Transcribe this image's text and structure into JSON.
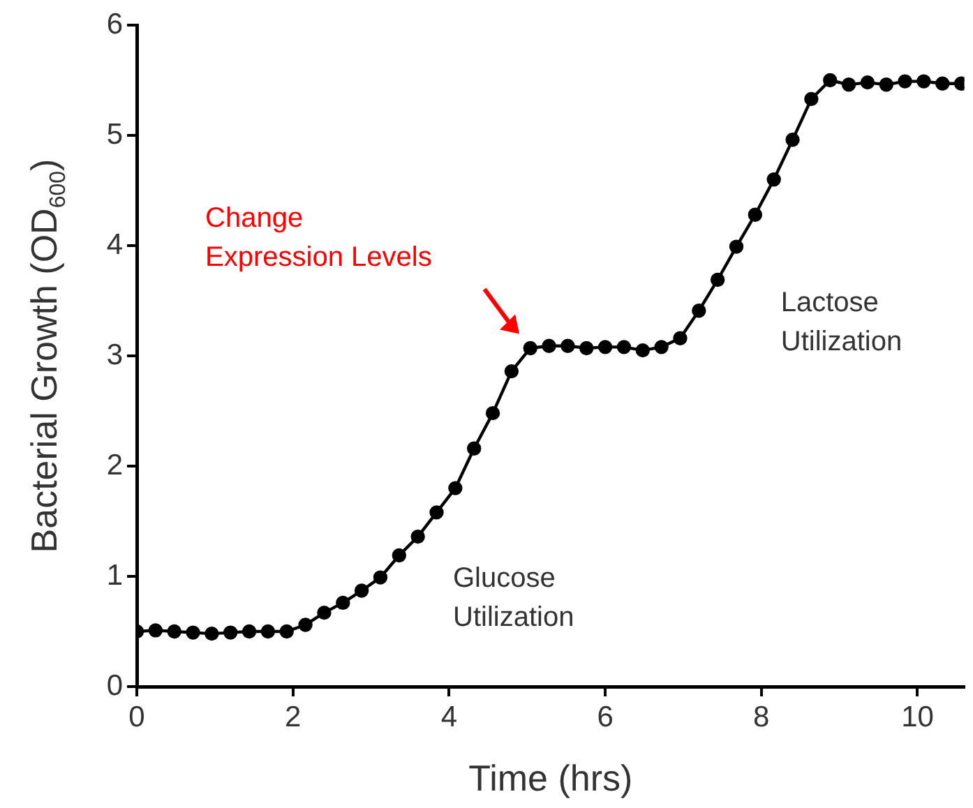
{
  "chart_data": {
    "type": "line",
    "xlabel": "Time (hrs)",
    "ylabel": "Bacterial Growth (OD$_{600}$)",
    "x": [
      0,
      0.24,
      0.48,
      0.72,
      0.96,
      1.2,
      1.44,
      1.68,
      1.92,
      2.16,
      2.4,
      2.64,
      2.88,
      3.12,
      3.36,
      3.6,
      3.84,
      4.08,
      4.32,
      4.56,
      4.8,
      5.04,
      5.28,
      5.52,
      5.76,
      6,
      6.24,
      6.48,
      6.72,
      6.96,
      7.2,
      7.44,
      7.68,
      7.92,
      8.16,
      8.4,
      8.64,
      8.88,
      9.12,
      9.36,
      9.6,
      9.84,
      10.08,
      10.32,
      10.56
    ],
    "series": [
      {
        "color": "#000000",
        "values": [
          0.5,
          0.51,
          0.5,
          0.49,
          0.48,
          0.49,
          0.5,
          0.5,
          0.5,
          0.56,
          0.67,
          0.76,
          0.87,
          0.99,
          1.19,
          1.36,
          1.58,
          1.8,
          2.16,
          2.48,
          2.86,
          3.07,
          3.09,
          3.09,
          3.07,
          3.08,
          3.08,
          3.05,
          3.08,
          3.16,
          3.41,
          3.69,
          3.99,
          4.28,
          4.6,
          4.96,
          5.33,
          5.5,
          5.46,
          5.48,
          5.46,
          5.49,
          5.49,
          5.47,
          5.47
        ]
      }
    ],
    "xlim": [
      0,
      10.6
    ],
    "xticks": [
      0,
      2,
      4,
      6,
      8,
      10
    ],
    "ylim": [
      0,
      6
    ],
    "yticks": [
      0,
      1,
      2,
      3,
      4,
      5,
      6
    ],
    "annotations": [
      "Change\nExpression Levels",
      "Glucose\nUtilization",
      "Lactose\nUtilization"
    ],
    "grid": false,
    "legend": false,
    "marker": "circle",
    "line_style": "solid"
  }
}
